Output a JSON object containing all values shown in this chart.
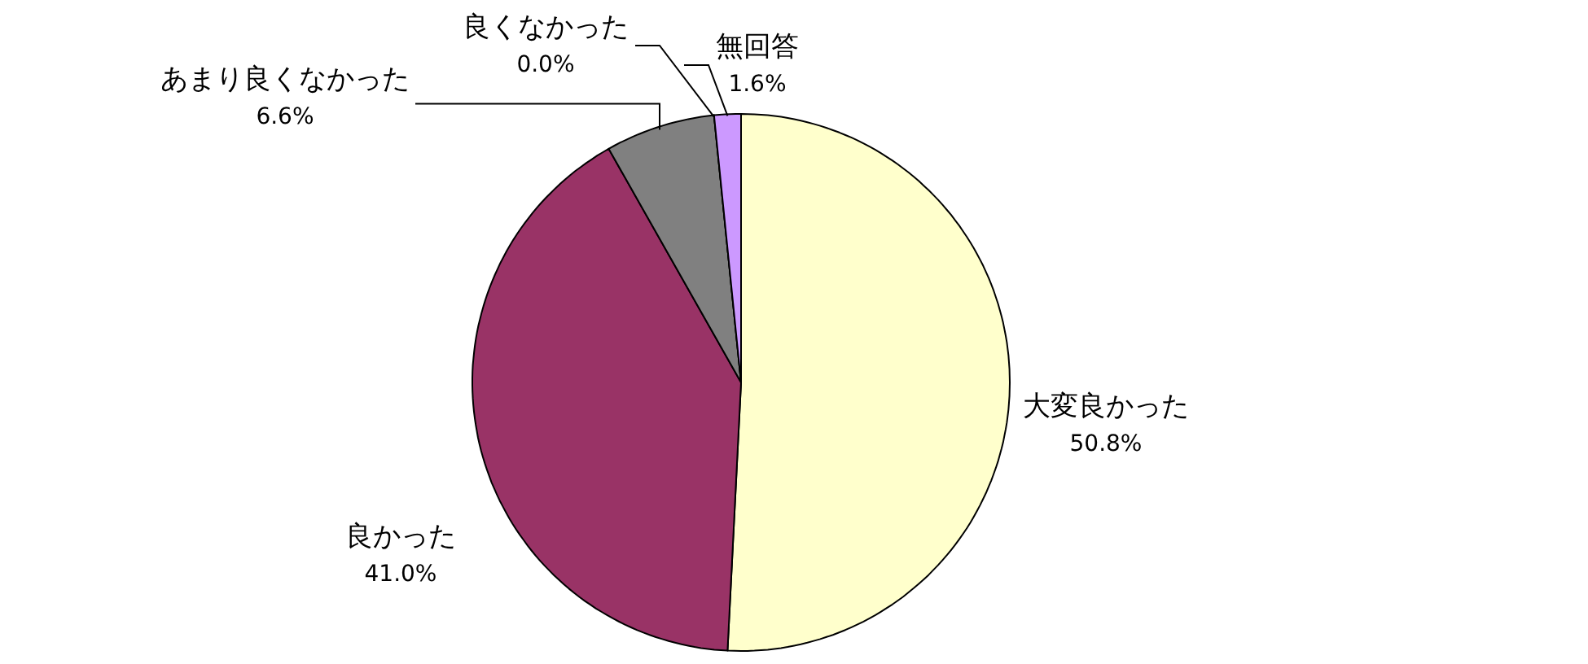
{
  "chart_data": {
    "type": "pie",
    "categories": [
      "大変良かった",
      "良かった",
      "あまり良くなかった",
      "良くなかった",
      "無回答"
    ],
    "values": [
      50.8,
      41.0,
      6.6,
      0.0,
      1.6
    ],
    "value_labels": [
      "50.8%",
      "41.0%",
      "6.6%",
      "0.0%",
      "1.6%"
    ],
    "colors": [
      "#ffffcc",
      "#993366",
      "#808080",
      "#000000",
      "#cc99ff"
    ],
    "legend": false
  }
}
